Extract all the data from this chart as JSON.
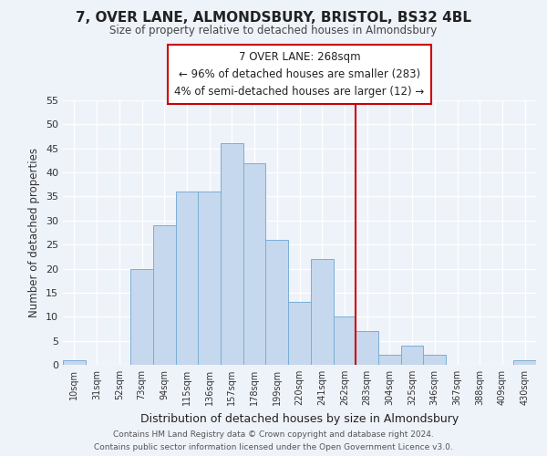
{
  "title": "7, OVER LANE, ALMONDSBURY, BRISTOL, BS32 4BL",
  "subtitle": "Size of property relative to detached houses in Almondsbury",
  "xlabel": "Distribution of detached houses by size in Almondsbury",
  "ylabel": "Number of detached properties",
  "bar_labels": [
    "10sqm",
    "31sqm",
    "52sqm",
    "73sqm",
    "94sqm",
    "115sqm",
    "136sqm",
    "157sqm",
    "178sqm",
    "199sqm",
    "220sqm",
    "241sqm",
    "262sqm",
    "283sqm",
    "304sqm",
    "325sqm",
    "346sqm",
    "367sqm",
    "388sqm",
    "409sqm",
    "430sqm"
  ],
  "bar_values": [
    1,
    0,
    0,
    20,
    29,
    36,
    36,
    46,
    42,
    26,
    13,
    22,
    10,
    7,
    2,
    4,
    2,
    0,
    0,
    0,
    1
  ],
  "bar_color": "#c5d8ed",
  "bar_edge_color": "#7aaed6",
  "vline_x": 12.5,
  "vline_color": "#cc0000",
  "ylim": [
    0,
    55
  ],
  "yticks": [
    0,
    5,
    10,
    15,
    20,
    25,
    30,
    35,
    40,
    45,
    50,
    55
  ],
  "annotation_title": "7 OVER LANE: 268sqm",
  "annotation_line1": "← 96% of detached houses are smaller (283)",
  "annotation_line2": "4% of semi-detached houses are larger (12) →",
  "footer1": "Contains HM Land Registry data © Crown copyright and database right 2024.",
  "footer2": "Contains public sector information licensed under the Open Government Licence v3.0.",
  "background_color": "#eef2f9",
  "grid_color": "#ffffff"
}
